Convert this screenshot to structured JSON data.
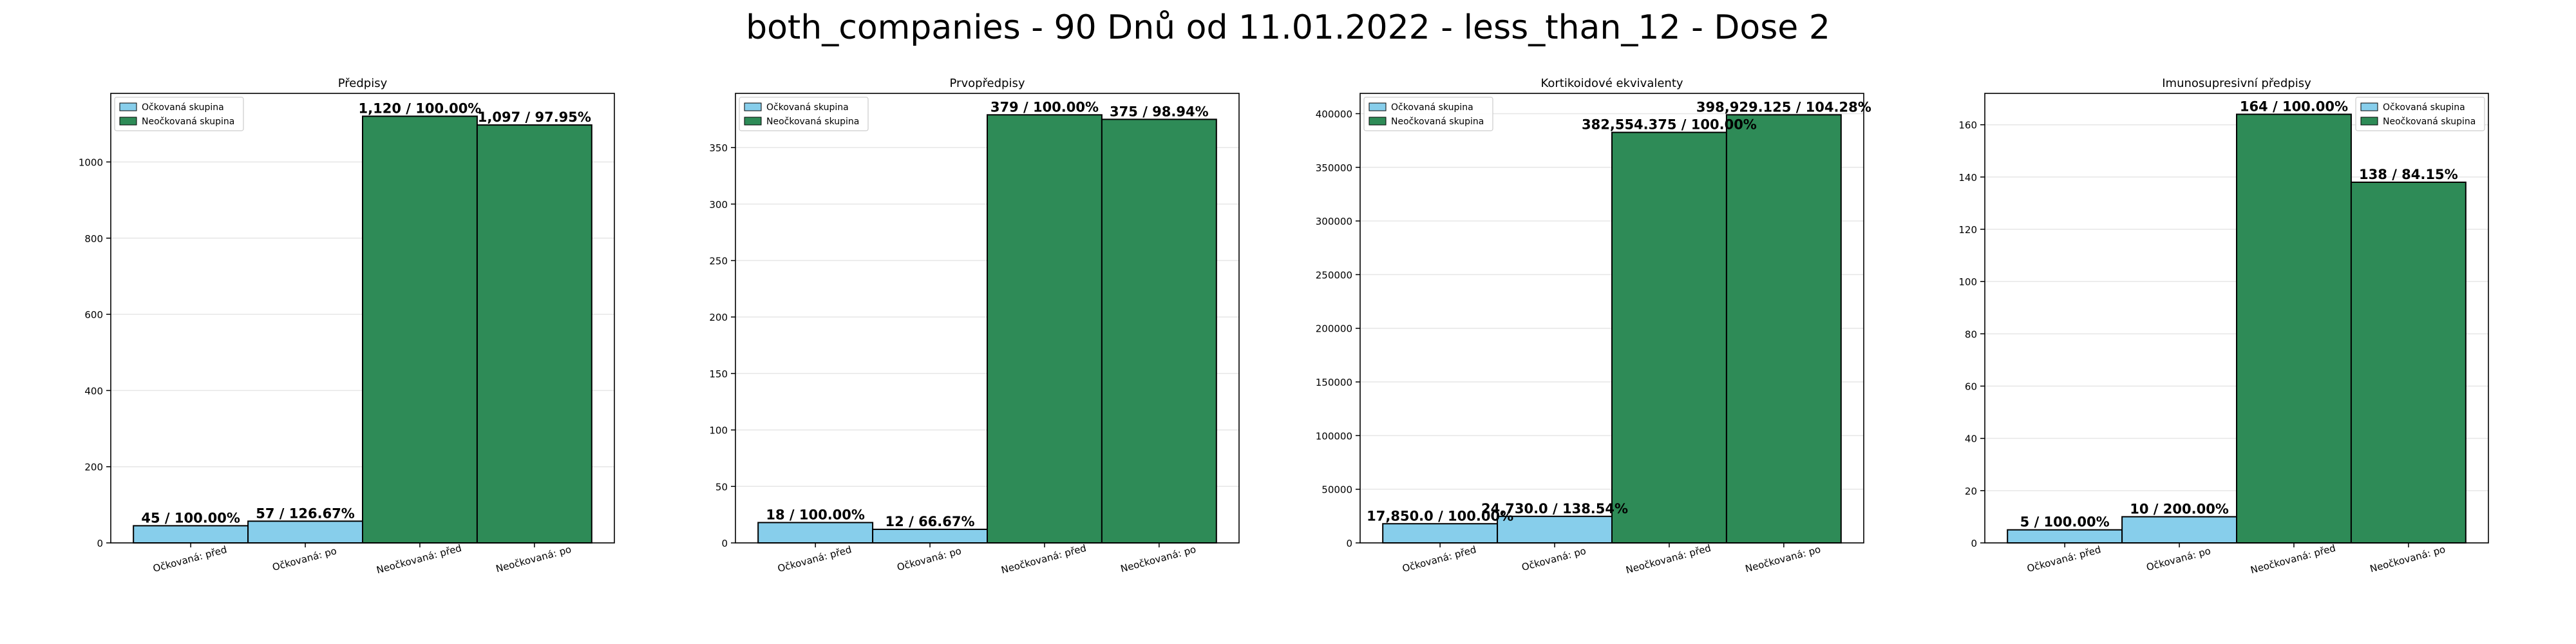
{
  "figure_title": "both_companies - 90 Dnů od 11.01.2022 - less_than_12 - Dose 2",
  "colors": {
    "vaccinated": "#87CEEB",
    "unvaccinated": "#2E8B57",
    "edge": "#000000",
    "grid": "#e6e6e6"
  },
  "legend_labels": [
    "Očkovaná skupina",
    "Neočkovaná skupina"
  ],
  "chart_data": [
    {
      "type": "bar",
      "title": "Předpisy",
      "categories": [
        "Očkovaná: před",
        "Očkovaná: po",
        "Neočkovaná: před",
        "Neočkovaná: po"
      ],
      "values": [
        45,
        57,
        1120,
        1097
      ],
      "bar_groups": [
        "vaccinated",
        "vaccinated",
        "unvaccinated",
        "unvaccinated"
      ],
      "data_labels": [
        "45 / 100.00%",
        "57 / 126.67%",
        "1,120 / 100.00%",
        "1,097 / 97.95%"
      ],
      "yticks": [
        0,
        200,
        400,
        600,
        800,
        1000
      ],
      "ytick_labels": [
        "0",
        "200",
        "400",
        "600",
        "800",
        "1000"
      ],
      "ylim": [
        0,
        1180
      ],
      "legend_position": "upper-left",
      "grid": true
    },
    {
      "type": "bar",
      "title": "Prvopředpisy",
      "categories": [
        "Očkovaná: před",
        "Očkovaná: po",
        "Neočkovaná: před",
        "Neočkovaná: po"
      ],
      "values": [
        18,
        12,
        379,
        375
      ],
      "bar_groups": [
        "vaccinated",
        "vaccinated",
        "unvaccinated",
        "unvaccinated"
      ],
      "data_labels": [
        "18 / 100.00%",
        "12 / 66.67%",
        "379 / 100.00%",
        "375 / 98.94%"
      ],
      "yticks": [
        0,
        50,
        100,
        150,
        200,
        250,
        300,
        350
      ],
      "ytick_labels": [
        "0",
        "50",
        "100",
        "150",
        "200",
        "250",
        "300",
        "350"
      ],
      "ylim": [
        0,
        398
      ],
      "legend_position": "upper-left",
      "grid": true
    },
    {
      "type": "bar",
      "title": "Kortikoidové ekvivalenty",
      "categories": [
        "Očkovaná: před",
        "Očkovaná: po",
        "Neočkovaná: před",
        "Neočkovaná: po"
      ],
      "values": [
        17850.0,
        24730.0,
        382554.375,
        398929.125
      ],
      "bar_groups": [
        "vaccinated",
        "vaccinated",
        "unvaccinated",
        "unvaccinated"
      ],
      "data_labels": [
        "17,850.0 / 100.00%",
        "24,730.0 / 138.54%",
        "382,554.375 / 100.00%",
        "398,929.125 / 104.28%"
      ],
      "yticks": [
        0,
        50000,
        100000,
        150000,
        200000,
        250000,
        300000,
        350000,
        400000
      ],
      "ytick_labels": [
        "0",
        "50000",
        "100000",
        "150000",
        "200000",
        "250000",
        "300000",
        "350000",
        "400000"
      ],
      "ylim": [
        0,
        418900
      ],
      "legend_position": "upper-left",
      "grid": true
    },
    {
      "type": "bar",
      "title": "Imunosupresivní předpisy",
      "categories": [
        "Očkovaná: před",
        "Očkovaná: po",
        "Neočkovaná: před",
        "Neočkovaná: po"
      ],
      "values": [
        5,
        10,
        164,
        138
      ],
      "bar_groups": [
        "vaccinated",
        "vaccinated",
        "unvaccinated",
        "unvaccinated"
      ],
      "data_labels": [
        "5 / 100.00%",
        "10 / 200.00%",
        "164 / 100.00%",
        "138 / 84.15%"
      ],
      "yticks": [
        0,
        20,
        40,
        60,
        80,
        100,
        120,
        140,
        160
      ],
      "ytick_labels": [
        "0",
        "20",
        "40",
        "60",
        "80",
        "100",
        "120",
        "140",
        "160"
      ],
      "ylim": [
        0,
        172
      ],
      "legend_position": "upper-right",
      "grid": true
    }
  ]
}
